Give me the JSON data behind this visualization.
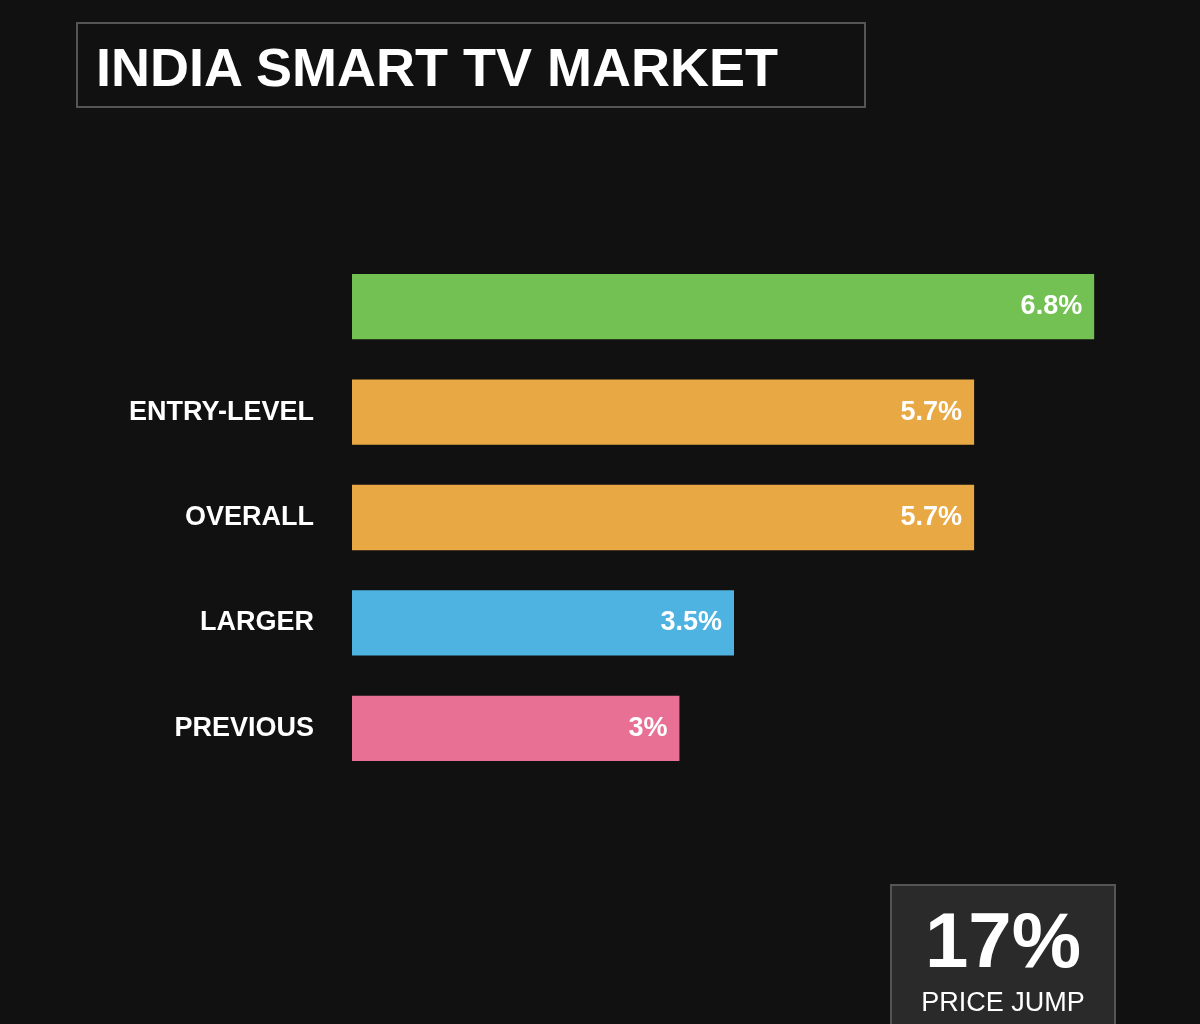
{
  "chart_data": {
    "type": "bar",
    "orientation": "horizontal",
    "title": "INDIA SMART TV MARKET",
    "categories": [
      null,
      "ENTRY-LEVEL",
      "OVERALL",
      "LARGER",
      "PREVIOUS"
    ],
    "values": [
      6.8,
      5.7,
      5.7,
      3.5,
      3
    ],
    "value_labels": [
      "6.8%",
      "5.7%",
      "5.7%",
      "3.5%",
      "3%"
    ],
    "colors": [
      "#72c152",
      "#e8a945",
      "#e8a945",
      "#4eb3e0",
      "#e87095"
    ],
    "annotations": [
      "17%",
      "PRICE JUMP"
    ]
  }
}
